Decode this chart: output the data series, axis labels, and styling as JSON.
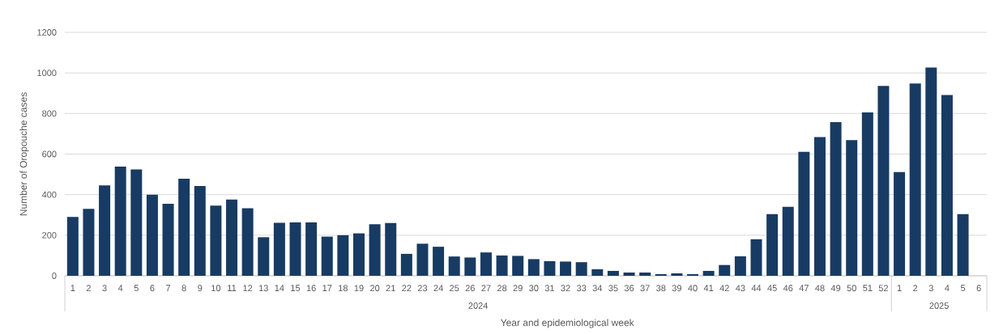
{
  "chart_data": {
    "type": "bar",
    "xlabel": "Year and epidemiological week",
    "ylabel": "Number of Oropouche cases",
    "categories": [
      "1",
      "2",
      "3",
      "4",
      "5",
      "6",
      "7",
      "8",
      "9",
      "10",
      "11",
      "12",
      "13",
      "14",
      "15",
      "16",
      "17",
      "18",
      "19",
      "20",
      "21",
      "22",
      "23",
      "24",
      "25",
      "26",
      "27",
      "28",
      "29",
      "30",
      "31",
      "32",
      "33",
      "34",
      "35",
      "36",
      "37",
      "38",
      "39",
      "40",
      "41",
      "42",
      "43",
      "44",
      "45",
      "46",
      "47",
      "48",
      "49",
      "50",
      "51",
      "52",
      "1",
      "2",
      "3",
      "4",
      "5",
      "6"
    ],
    "values": [
      290,
      330,
      445,
      538,
      524,
      400,
      355,
      478,
      442,
      346,
      376,
      333,
      190,
      261,
      263,
      263,
      193,
      200,
      209,
      254,
      260,
      108,
      158,
      143,
      95,
      90,
      115,
      100,
      98,
      82,
      72,
      70,
      67,
      32,
      24,
      16,
      16,
      8,
      12,
      8,
      24,
      53,
      96,
      180,
      304,
      340,
      611,
      684,
      757,
      669,
      805,
      936,
      511,
      948,
      1027,
      891,
      304,
      null
    ],
    "color": "#183b63",
    "ylim": [
      0,
      1200
    ],
    "yticks": [
      0,
      200,
      400,
      600,
      800,
      1000,
      1200
    ],
    "grid": "y",
    "annotations": [
      "2024",
      "2025"
    ]
  }
}
